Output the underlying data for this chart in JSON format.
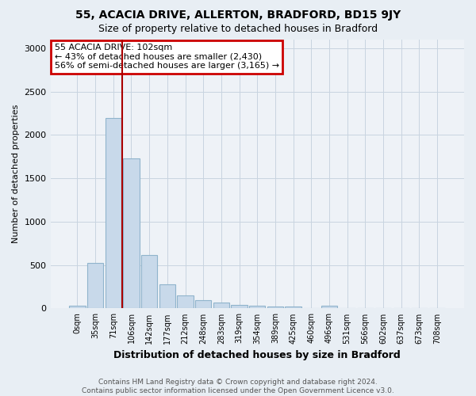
{
  "title1": "55, ACACIA DRIVE, ALLERTON, BRADFORD, BD15 9JY",
  "title2": "Size of property relative to detached houses in Bradford",
  "xlabel": "Distribution of detached houses by size in Bradford",
  "ylabel": "Number of detached properties",
  "bar_labels": [
    "0sqm",
    "35sqm",
    "71sqm",
    "106sqm",
    "142sqm",
    "177sqm",
    "212sqm",
    "248sqm",
    "283sqm",
    "319sqm",
    "354sqm",
    "389sqm",
    "425sqm",
    "460sqm",
    "496sqm",
    "531sqm",
    "566sqm",
    "602sqm",
    "637sqm",
    "673sqm",
    "708sqm"
  ],
  "bar_values": [
    30,
    520,
    2200,
    1730,
    620,
    280,
    150,
    95,
    65,
    45,
    35,
    25,
    20,
    5,
    30,
    3,
    2,
    2,
    1,
    1,
    1
  ],
  "bar_color": "#c8d9ea",
  "bar_edge_color": "#90b4cc",
  "ylim": [
    0,
    3100
  ],
  "yticks": [
    0,
    500,
    1000,
    1500,
    2000,
    2500,
    3000
  ],
  "vline_x_index": 2.5,
  "vline_color": "#aa0000",
  "annotation_text": "55 ACACIA DRIVE: 102sqm\n← 43% of detached houses are smaller (2,430)\n56% of semi-detached houses are larger (3,165) →",
  "annotation_box_color": "#ffffff",
  "annotation_box_edge": "#cc0000",
  "footer_text": "Contains HM Land Registry data © Crown copyright and database right 2024.\nContains public sector information licensed under the Open Government Licence v3.0.",
  "background_color": "#e8eef4",
  "plot_bg_color": "#eef2f7",
  "grid_color": "#c8d4e0"
}
